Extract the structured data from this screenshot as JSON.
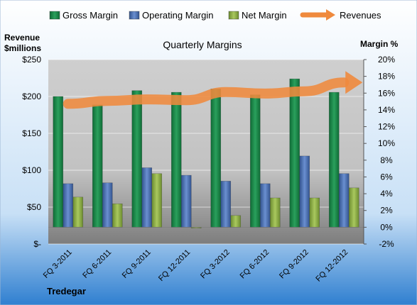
{
  "chart_data": {
    "type": "bar",
    "title": "Quarterly Margins",
    "company": "Tredegar",
    "categories": [
      "FQ 3-2011",
      "FQ 6-2011",
      "FQ 9-2011",
      "FQ 12-2011",
      "FQ 3-2012",
      "FQ 6-2012",
      "FQ 9-2012",
      "FQ 12-2012"
    ],
    "y_left": {
      "label_line1": "Revenue",
      "label_line2": "$millions",
      "ticks": [
        "$250",
        "$200",
        "$150",
        "$100",
        "$50",
        "$-"
      ],
      "tick_values": [
        250,
        200,
        150,
        100,
        50,
        0
      ],
      "range": [
        0,
        250
      ]
    },
    "y_right": {
      "label": "Margin %",
      "ticks": [
        "20%",
        "18%",
        "16%",
        "14%",
        "12%",
        "10%",
        "8%",
        "6%",
        "4%",
        "2%",
        "0%",
        "-2%"
      ],
      "tick_values": [
        20,
        18,
        16,
        14,
        12,
        10,
        8,
        6,
        4,
        2,
        0,
        -2
      ],
      "range": [
        -2,
        20
      ]
    },
    "series": [
      {
        "name": "Gross Margin",
        "axis": "right",
        "kind": "bar",
        "color": "#1e8a4e",
        "values": [
          15.6,
          14.6,
          16.3,
          16.1,
          16.5,
          15.8,
          17.7,
          16.1
        ]
      },
      {
        "name": "Operating Margin",
        "axis": "right",
        "kind": "bar",
        "color": "#4a6fb5",
        "values": [
          5.2,
          5.3,
          7.1,
          6.2,
          5.5,
          5.2,
          8.5,
          6.4
        ]
      },
      {
        "name": "Net Margin",
        "axis": "right",
        "kind": "bar",
        "color": "#8cb046",
        "values": [
          3.6,
          2.8,
          6.4,
          -0.1,
          1.4,
          3.5,
          3.5,
          4.7
        ]
      },
      {
        "name": "Revenues",
        "axis": "left",
        "kind": "line",
        "color": "#ef8a3d",
        "values": [
          190,
          194,
          196,
          195,
          206,
          204,
          207,
          219
        ]
      }
    ],
    "legend_position": "top",
    "grid": true
  }
}
